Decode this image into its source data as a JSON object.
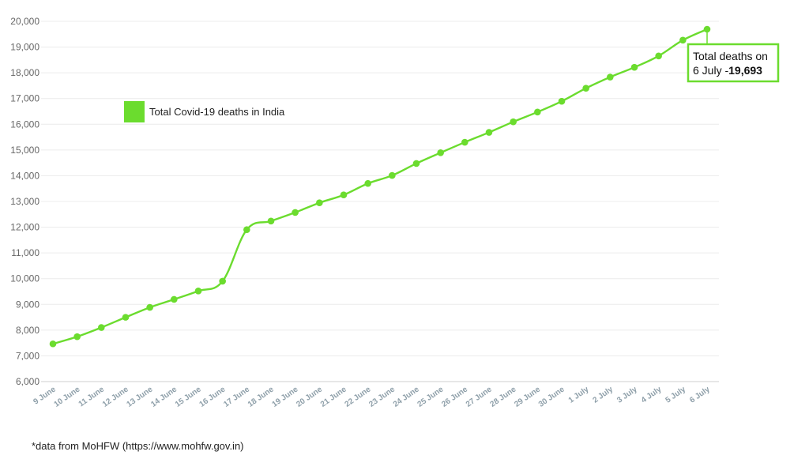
{
  "chart_data": {
    "type": "line",
    "categories": [
      "9 June",
      "10 June",
      "11 June",
      "12 June",
      "13 June",
      "14 June",
      "15 June",
      "16 June",
      "17 June",
      "18 June",
      "19 June",
      "20 June",
      "21 June",
      "22 June",
      "23 June",
      "24 June",
      "25 June",
      "26 June",
      "27 June",
      "28 June",
      "29 June",
      "30 June",
      "1 July",
      "2 July",
      "3 July",
      "4 July",
      "5 July",
      "6 July"
    ],
    "series": [
      {
        "name": "Total Covid-19 deaths in India",
        "color": "#6bdc2e",
        "values": [
          7466,
          7745,
          8102,
          8498,
          8884,
          9195,
          9520,
          9900,
          11903,
          12237,
          12573,
          12948,
          13254,
          13699,
          14011,
          14476,
          14894,
          15301,
          15685,
          16095,
          16475,
          16893,
          17400,
          17834,
          18213,
          18655,
          19268,
          19693
        ]
      }
    ],
    "ylim": [
      6000,
      20000
    ],
    "yticks": [
      "6,000",
      "7,000",
      "8,000",
      "9,000",
      "10,000",
      "11,000",
      "12,000",
      "13,000",
      "14,000",
      "15,000",
      "16,000",
      "17,000",
      "18,000",
      "19,000",
      "20,000"
    ],
    "grid": true,
    "legend": {
      "label": "Total Covid-19 deaths in India",
      "color": "#6bdc2e",
      "placement": "upper-left"
    },
    "annotation": {
      "line1": "Total deaths on",
      "line2_prefix": "6 July -",
      "line2_value": "19,693",
      "border_color": "#6bdc2e"
    }
  },
  "source_note": "*data from MoHFW (https://www.mohfw.gov.in)"
}
